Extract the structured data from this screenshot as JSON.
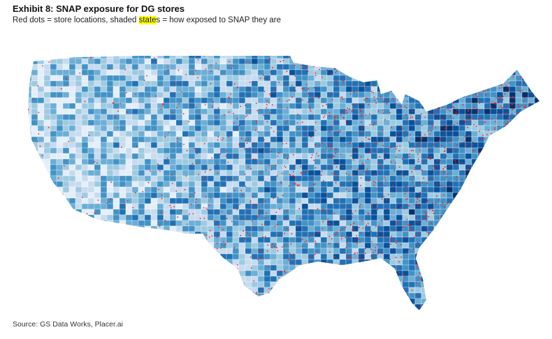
{
  "header": {
    "title": "Exhibit 8: SNAP exposure for DG stores",
    "subtitle": {
      "before": "Red dots = store locations, shaded ",
      "highlight": "state",
      "after": "s = how exposed to SNAP they are"
    }
  },
  "footer": {
    "source": "Source: GS Data Works, Placer.ai"
  }
}
